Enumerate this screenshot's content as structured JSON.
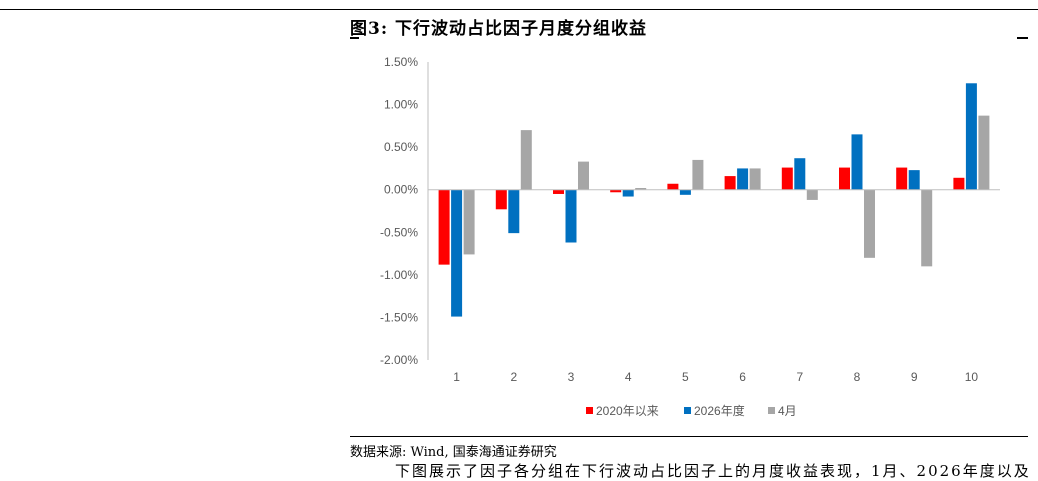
{
  "figure_title": "图3:  下行波动占比因子月度分组收益",
  "source_note": "数据来源: Wind, 国泰海通证券研究",
  "body_text": "下图展示了因子各分组在下行波动占比因子上的月度收益表现，1月、2026年度以及",
  "colors": {
    "series_2020": "#ff0000",
    "series_2026": "#0070c0",
    "series_apr": "#a6a6a6",
    "axis": "#bfbfbf",
    "text": "#595959"
  },
  "chart_data": {
    "type": "bar",
    "categories": [
      "1",
      "2",
      "3",
      "4",
      "5",
      "6",
      "7",
      "8",
      "9",
      "10"
    ],
    "series": [
      {
        "name": "2020年以来",
        "values": [
          -0.88,
          -0.23,
          -0.05,
          -0.03,
          0.07,
          0.16,
          0.26,
          0.26,
          0.26,
          0.14
        ]
      },
      {
        "name": "2026年度",
        "values": [
          -1.49,
          -0.51,
          -0.62,
          -0.08,
          -0.06,
          0.25,
          0.37,
          0.65,
          0.23,
          1.25
        ]
      },
      {
        "name": "4月",
        "values": [
          -0.76,
          0.7,
          0.33,
          0.02,
          0.35,
          0.25,
          -0.12,
          -0.8,
          -0.9,
          0.87
        ]
      }
    ],
    "y_ticks": [
      "1.50%",
      "1.00%",
      "0.50%",
      "0.00%",
      "-0.50%",
      "-1.00%",
      "-1.50%",
      "-2.00%"
    ],
    "ylim": [
      -2.0,
      1.5
    ],
    "legend_position": "bottom",
    "grid": false
  }
}
